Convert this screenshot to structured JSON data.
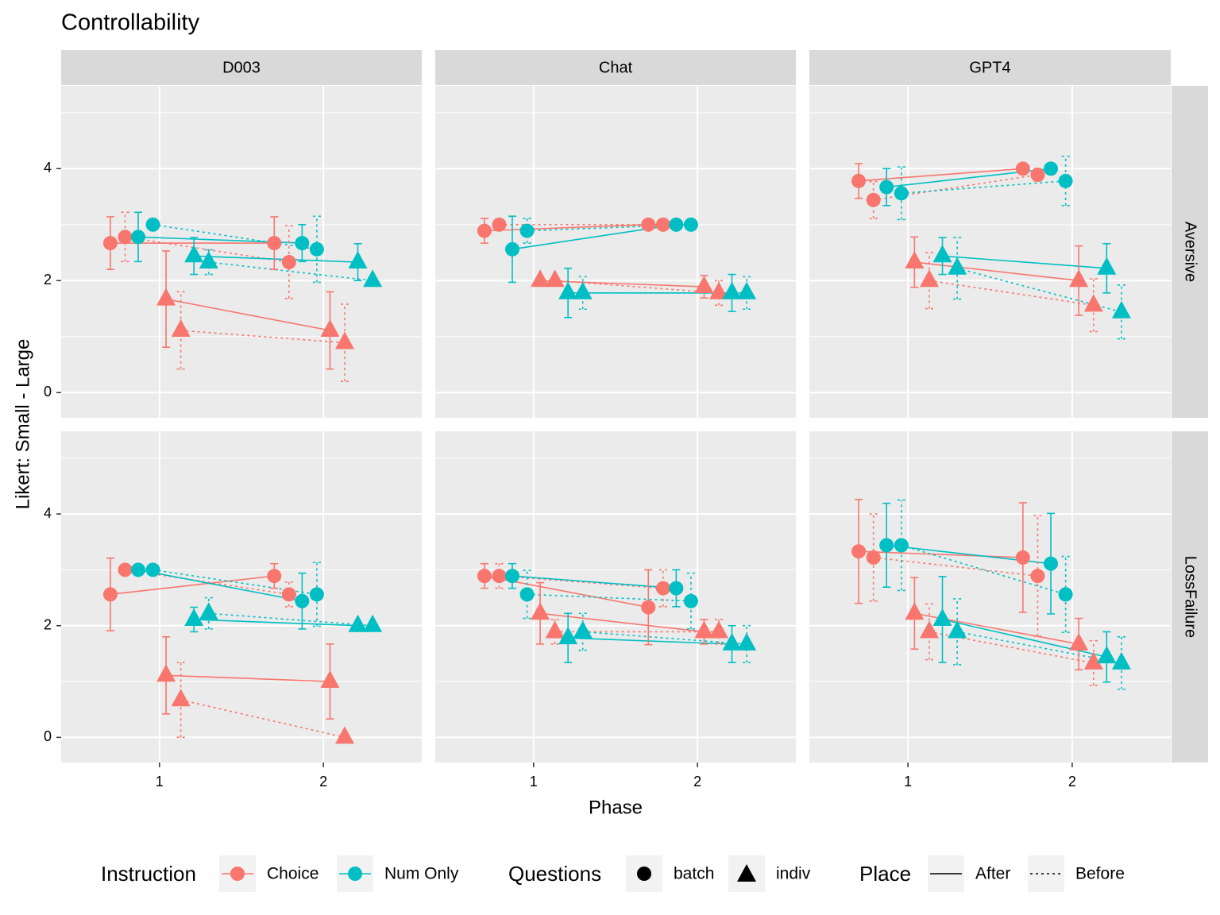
{
  "chart_data": {
    "type": "line",
    "title": "Controllability",
    "xlabel": "Phase",
    "ylabel": "Likert: Small - Large",
    "columns": [
      "D003",
      "Chat",
      "GPT4"
    ],
    "rows": [
      "Aversive",
      "LossFailure"
    ],
    "xlim": [
      0.4,
      2.6
    ],
    "xticks": [
      1,
      2
    ],
    "ylim": [
      -0.45,
      5.48
    ],
    "yticks": [
      0,
      2,
      4
    ],
    "grid": true,
    "legend_position": "bottom",
    "legend": [
      {
        "title": "Instruction",
        "items": [
          {
            "label": "Choice",
            "color": "#f8766d"
          },
          {
            "label": "Num Only",
            "color": "#00bfc4"
          }
        ]
      },
      {
        "title": "Questions",
        "items": [
          {
            "label": "batch",
            "shape": "circle"
          },
          {
            "label": "indiv",
            "shape": "triangle"
          }
        ]
      },
      {
        "title": "Place",
        "items": [
          {
            "label": "After",
            "dash": "solid"
          },
          {
            "label": "Before",
            "dash": "dotted"
          }
        ]
      }
    ],
    "series": [
      {
        "color": "#f8766d",
        "shape": "circle",
        "dash": "solid",
        "x": [
          0.7,
          1.7
        ]
      },
      {
        "color": "#f8766d",
        "shape": "circle",
        "dash": "dotted",
        "x": [
          0.79,
          1.79
        ]
      },
      {
        "color": "#00bfc4",
        "shape": "circle",
        "dash": "solid",
        "x": [
          0.87,
          1.87
        ]
      },
      {
        "color": "#00bfc4",
        "shape": "circle",
        "dash": "dotted",
        "x": [
          0.96,
          1.96
        ]
      },
      {
        "color": "#f8766d",
        "shape": "triangle",
        "dash": "solid",
        "x": [
          1.04,
          2.04
        ]
      },
      {
        "color": "#f8766d",
        "shape": "triangle",
        "dash": "dotted",
        "x": [
          1.13,
          2.13
        ]
      },
      {
        "color": "#00bfc4",
        "shape": "triangle",
        "dash": "solid",
        "x": [
          1.21,
          2.21
        ]
      },
      {
        "color": "#00bfc4",
        "shape": "triangle",
        "dash": "dotted",
        "x": [
          1.3,
          2.3
        ]
      }
    ],
    "panels": [
      [
        {
          "series": [
            {
              "values": [
                2.67,
                2.67
              ],
              "errors": [
                0.47,
                0.47
              ]
            },
            {
              "values": [
                2.78,
                2.33
              ],
              "errors": [
                0.44,
                0.65
              ]
            },
            {
              "values": [
                2.78,
                2.67
              ],
              "errors": [
                0.44,
                0.33
              ]
            },
            {
              "values": [
                3.0,
                2.56
              ],
              "errors": [
                0,
                0.59
              ]
            },
            {
              "values": [
                1.67,
                1.11
              ],
              "errors": [
                0.86,
                0.69
              ]
            },
            {
              "values": [
                1.11,
                0.89
              ],
              "errors": [
                0.69,
                0.69
              ]
            },
            {
              "values": [
                2.44,
                2.33
              ],
              "errors": [
                0.33,
                0.33
              ]
            },
            {
              "values": [
                2.33,
                2.0
              ],
              "errors": [
                0.22,
                0
              ]
            }
          ]
        },
        {
          "series": [
            {
              "values": [
                2.89,
                3.0
              ],
              "errors": [
                0.22,
                0
              ]
            },
            {
              "values": [
                3.0,
                3.0
              ],
              "errors": [
                0,
                0
              ]
            },
            {
              "values": [
                2.56,
                3.0
              ],
              "errors": [
                0.59,
                0
              ]
            },
            {
              "values": [
                2.89,
                3.0
              ],
              "errors": [
                0.22,
                0
              ]
            },
            {
              "values": [
                2.0,
                1.89
              ],
              "errors": [
                0,
                0.2
              ]
            },
            {
              "values": [
                2.0,
                1.78
              ],
              "errors": [
                0,
                0.22
              ]
            },
            {
              "values": [
                1.78,
                1.78
              ],
              "errors": [
                0.44,
                0.33
              ]
            },
            {
              "values": [
                1.78,
                1.78
              ],
              "errors": [
                0.29,
                0.29
              ]
            }
          ]
        },
        {
          "series": [
            {
              "values": [
                3.78,
                4.0
              ],
              "errors": [
                0.31,
                0
              ]
            },
            {
              "values": [
                3.44,
                3.89
              ],
              "errors": [
                0.33,
                0.11
              ]
            },
            {
              "values": [
                3.67,
                4.0
              ],
              "errors": [
                0.33,
                0
              ]
            },
            {
              "values": [
                3.56,
                3.78
              ],
              "errors": [
                0.47,
                0.44
              ]
            },
            {
              "values": [
                2.33,
                2.0
              ],
              "errors": [
                0.45,
                0.62
              ]
            },
            {
              "values": [
                2.0,
                1.56
              ],
              "errors": [
                0.5,
                0.47
              ]
            },
            {
              "values": [
                2.44,
                2.22
              ],
              "errors": [
                0.33,
                0.44
              ]
            },
            {
              "values": [
                2.22,
                1.44
              ],
              "errors": [
                0.55,
                0.48
              ]
            }
          ]
        }
      ],
      [
        {
          "series": [
            {
              "values": [
                2.56,
                2.89
              ],
              "errors": [
                0.65,
                0.22
              ]
            },
            {
              "values": [
                3.0,
                2.56
              ],
              "errors": [
                0,
                0.22
              ]
            },
            {
              "values": [
                3.0,
                2.44
              ],
              "errors": [
                0,
                0.5
              ]
            },
            {
              "values": [
                3.0,
                2.56
              ],
              "errors": [
                0,
                0.57
              ]
            },
            {
              "values": [
                1.11,
                1.0
              ],
              "errors": [
                0.69,
                0.67
              ]
            },
            {
              "values": [
                0.67,
                0
              ],
              "errors": [
                0.67,
                0
              ]
            },
            {
              "values": [
                2.11,
                2.0
              ],
              "errors": [
                0.22,
                0
              ]
            },
            {
              "values": [
                2.22,
                2.0
              ],
              "errors": [
                0.28,
                0
              ]
            }
          ]
        },
        {
          "series": [
            {
              "values": [
                2.89,
                2.33
              ],
              "errors": [
                0.22,
                0.67
              ]
            },
            {
              "values": [
                2.89,
                2.67
              ],
              "errors": [
                0.22,
                0.33
              ]
            },
            {
              "values": [
                2.89,
                2.67
              ],
              "errors": [
                0.22,
                0.33
              ]
            },
            {
              "values": [
                2.56,
                2.44
              ],
              "errors": [
                0.43,
                0.5
              ]
            },
            {
              "values": [
                2.22,
                1.89
              ],
              "errors": [
                0.55,
                0.22
              ]
            },
            {
              "values": [
                1.89,
                1.89
              ],
              "errors": [
                0.22,
                0.22
              ]
            },
            {
              "values": [
                1.78,
                1.67
              ],
              "errors": [
                0.44,
                0.33
              ]
            },
            {
              "values": [
                1.89,
                1.67
              ],
              "errors": [
                0.33,
                0.33
              ]
            }
          ]
        },
        {
          "series": [
            {
              "values": [
                3.33,
                3.22
              ],
              "errors": [
                0.93,
                0.98
              ]
            },
            {
              "values": [
                3.22,
                2.89
              ],
              "errors": [
                0.78,
                1.08
              ]
            },
            {
              "values": [
                3.44,
                3.11
              ],
              "errors": [
                0.75,
                0.9
              ]
            },
            {
              "values": [
                3.44,
                2.56
              ],
              "errors": [
                0.81,
                0.68
              ]
            },
            {
              "values": [
                2.22,
                1.67
              ],
              "errors": [
                0.64,
                0.46
              ]
            },
            {
              "values": [
                1.89,
                1.33
              ],
              "errors": [
                0.5,
                0.4
              ]
            },
            {
              "values": [
                2.11,
                1.44
              ],
              "errors": [
                0.77,
                0.45
              ]
            },
            {
              "values": [
                1.89,
                1.33
              ],
              "errors": [
                0.59,
                0.47
              ]
            }
          ]
        }
      ]
    ]
  }
}
